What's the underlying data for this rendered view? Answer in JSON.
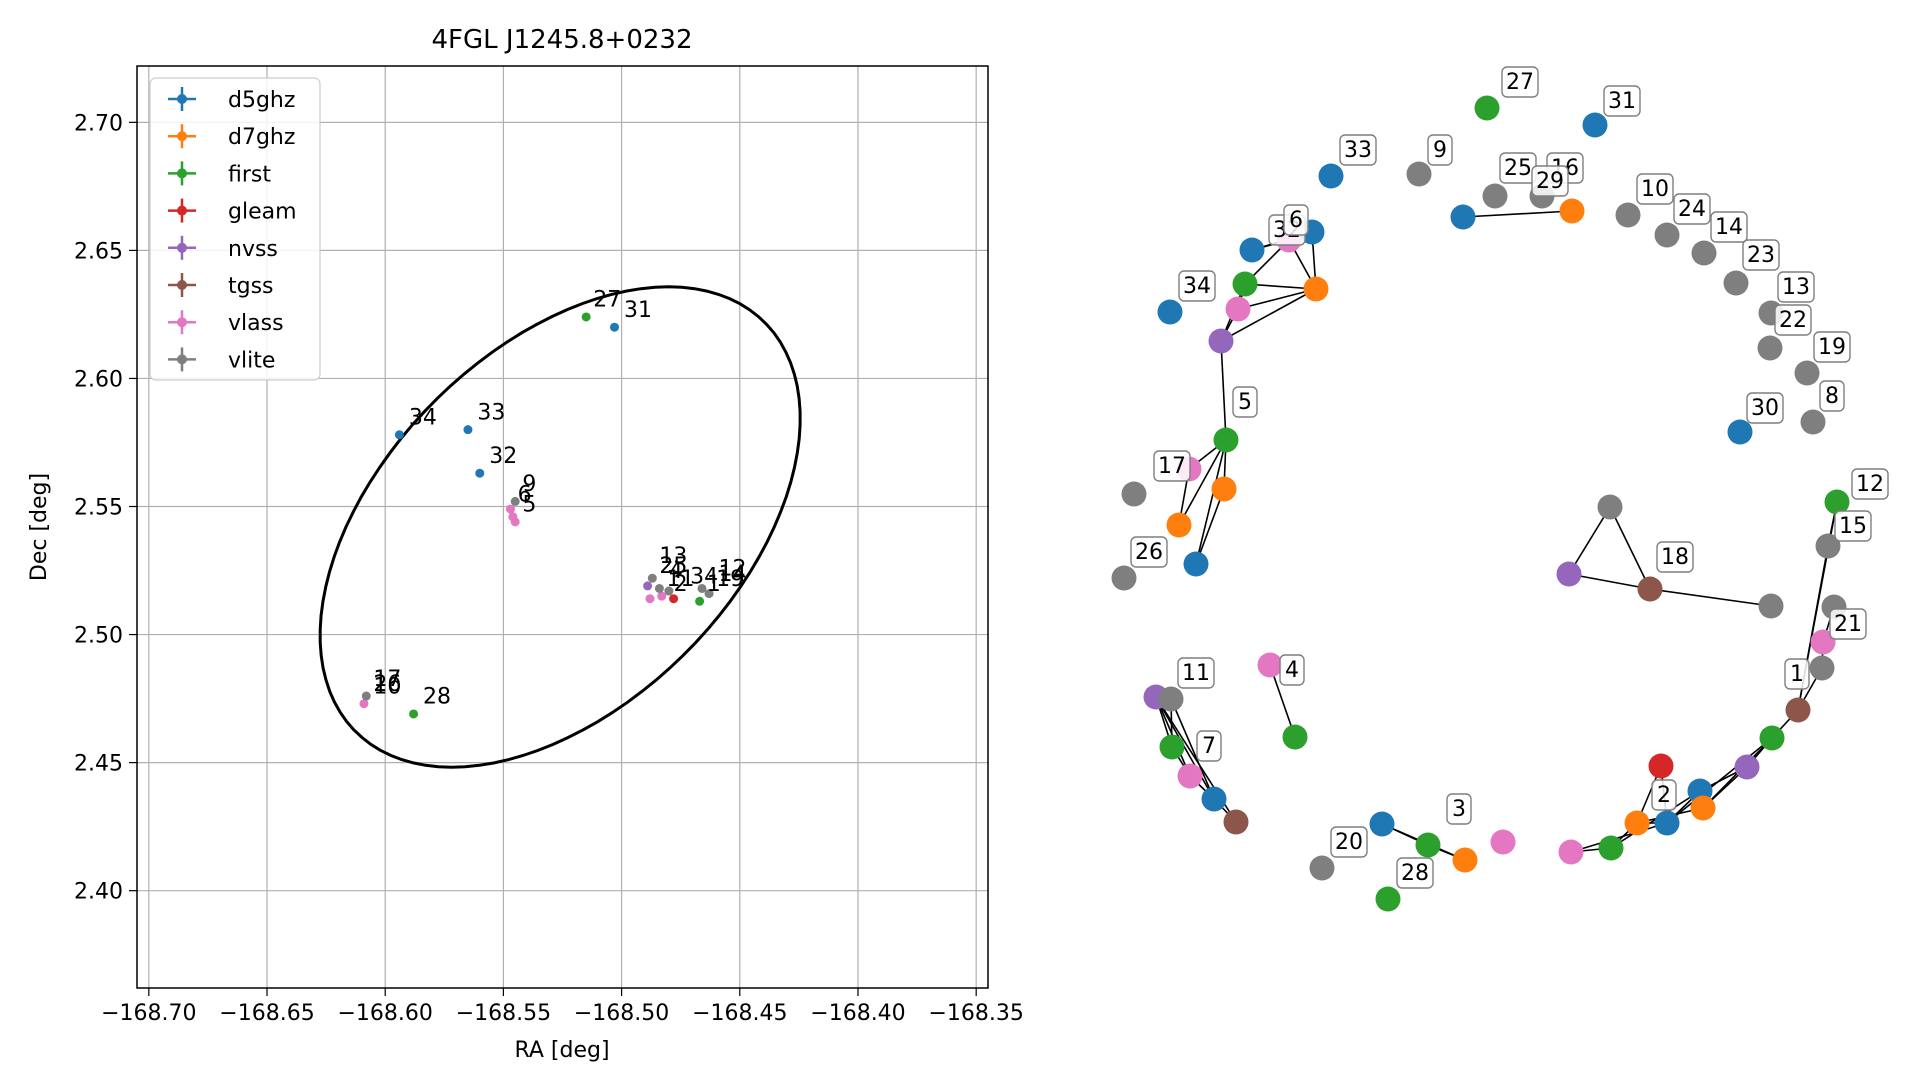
{
  "colors": {
    "d5ghz": "#1f77b4",
    "d7ghz": "#ff7f0e",
    "first": "#2ca02c",
    "gleam": "#d62728",
    "nvss": "#9467bd",
    "tgss": "#8c564b",
    "vlass": "#e377c2",
    "vlite": "#7f7f7f"
  },
  "chart_data": [
    {
      "type": "scatter",
      "title": "4FGL J1245.8+0232",
      "xlabel": "RA [deg]",
      "ylabel": "Dec [deg]",
      "xlim": [
        -168.705,
        -168.345
      ],
      "ylim": [
        2.362,
        2.722
      ],
      "x_ticks": [
        -168.7,
        -168.65,
        -168.6,
        -168.55,
        -168.5,
        -168.45,
        -168.4,
        -168.35
      ],
      "x_tick_labels": [
        "−168.70",
        "−168.65",
        "−168.60",
        "−168.55",
        "−168.50",
        "−168.45",
        "−168.40",
        "−168.35"
      ],
      "y_ticks": [
        2.4,
        2.45,
        2.5,
        2.55,
        2.6,
        2.65,
        2.7
      ],
      "y_tick_labels": [
        "2.40",
        "2.45",
        "2.50",
        "2.55",
        "2.60",
        "2.65",
        "2.70"
      ],
      "grid": true,
      "legend_position": "top-left",
      "legend": [
        "d5ghz",
        "d7ghz",
        "first",
        "gleam",
        "nvss",
        "tgss",
        "vlass",
        "vlite"
      ],
      "ellipse": {
        "center": [
          -168.526,
          2.542
        ],
        "semi_major": 0.118,
        "semi_minor": 0.072,
        "angle_deg": 40
      },
      "series": [
        {
          "name": "d5ghz",
          "points": [
            [
              -168.503,
              2.62
            ],
            [
              -168.594,
              2.578
            ],
            [
              -168.565,
              2.58
            ],
            [
              -168.56,
              2.563
            ]
          ]
        },
        {
          "name": "first",
          "points": [
            [
              -168.515,
              2.624
            ],
            [
              -168.588,
              2.469
            ],
            [
              -168.467,
              2.513
            ]
          ]
        },
        {
          "name": "gleam",
          "points": [
            [
              -168.478,
              2.514
            ]
          ]
        },
        {
          "name": "nvss",
          "points": [
            [
              -168.489,
              2.519
            ]
          ]
        },
        {
          "name": "vlass",
          "points": [
            [
              -168.547,
              2.549
            ],
            [
              -168.546,
              2.546
            ],
            [
              -168.545,
              2.544
            ],
            [
              -168.609,
              2.473
            ],
            [
              -168.488,
              2.514
            ],
            [
              -168.483,
              2.515
            ]
          ]
        },
        {
          "name": "vlite",
          "points": [
            [
              -168.545,
              2.552
            ],
            [
              -168.608,
              2.476
            ],
            [
              -168.487,
              2.522
            ],
            [
              -168.484,
              2.518
            ],
            [
              -168.48,
              2.517
            ],
            [
              -168.466,
              2.518
            ],
            [
              -168.463,
              2.516
            ]
          ]
        }
      ],
      "annotations": [
        {
          "text": "27",
          "x": -168.512,
          "y": 2.628
        },
        {
          "text": "31",
          "x": -168.499,
          "y": 2.624
        },
        {
          "text": "34",
          "x": -168.59,
          "y": 2.582
        },
        {
          "text": "33",
          "x": -168.561,
          "y": 2.584
        },
        {
          "text": "32",
          "x": -168.556,
          "y": 2.567
        },
        {
          "text": "9",
          "x": -168.542,
          "y": 2.556
        },
        {
          "text": "6",
          "x": -168.544,
          "y": 2.552
        },
        {
          "text": "5",
          "x": -168.542,
          "y": 2.548
        },
        {
          "text": "28",
          "x": -168.584,
          "y": 2.473
        },
        {
          "text": "26",
          "x": -168.605,
          "y": 2.478
        },
        {
          "text": "10",
          "x": -168.605,
          "y": 2.477
        },
        {
          "text": "17",
          "x": -168.605,
          "y": 2.48
        },
        {
          "text": "13",
          "x": -168.484,
          "y": 2.528
        },
        {
          "text": "25",
          "x": -168.484,
          "y": 2.524
        },
        {
          "text": "4",
          "x": -168.48,
          "y": 2.522
        },
        {
          "text": "2",
          "x": -168.478,
          "y": 2.517
        },
        {
          "text": "11",
          "x": -168.481,
          "y": 2.519
        },
        {
          "text": "34",
          "x": -168.471,
          "y": 2.52
        },
        {
          "text": "12",
          "x": -168.459,
          "y": 2.523
        },
        {
          "text": "19",
          "x": -168.46,
          "y": 2.519
        },
        {
          "text": "14",
          "x": -168.459,
          "y": 2.521
        },
        {
          "text": "1",
          "x": -168.464,
          "y": 2.517
        }
      ]
    },
    {
      "type": "network",
      "nodes": [
        {
          "id": "n27",
          "cat": "first",
          "label": "27"
        },
        {
          "id": "n31",
          "cat": "d5ghz",
          "label": "31"
        },
        {
          "id": "n33",
          "cat": "d5ghz",
          "label": "33"
        },
        {
          "id": "n9",
          "cat": "vlite",
          "label": "9"
        },
        {
          "id": "n25",
          "cat": "vlite",
          "label": "25"
        },
        {
          "id": "n16",
          "cat": "vlite",
          "label": "16"
        },
        {
          "id": "n29a",
          "cat": "d5ghz",
          "label": ""
        },
        {
          "id": "n29b",
          "cat": "d7ghz",
          "label": "29"
        },
        {
          "id": "n10",
          "cat": "vlite",
          "label": "10"
        },
        {
          "id": "n24",
          "cat": "vlite",
          "label": "24"
        },
        {
          "id": "n14",
          "cat": "vlite",
          "label": "14"
        },
        {
          "id": "n23",
          "cat": "vlite",
          "label": "23"
        },
        {
          "id": "n13",
          "cat": "vlite",
          "label": "13"
        },
        {
          "id": "n22",
          "cat": "vlite",
          "label": "22"
        },
        {
          "id": "n19",
          "cat": "vlite",
          "label": "19"
        },
        {
          "id": "n8",
          "cat": "vlite",
          "label": "8"
        },
        {
          "id": "n30",
          "cat": "d5ghz",
          "label": "30"
        },
        {
          "id": "c6a",
          "cat": "d5ghz",
          "label": "32"
        },
        {
          "id": "c6b",
          "cat": "d5ghz",
          "label": ""
        },
        {
          "id": "c6c",
          "cat": "vlass",
          "label": "6"
        },
        {
          "id": "c6d",
          "cat": "first",
          "label": ""
        },
        {
          "id": "c6e",
          "cat": "d7ghz",
          "label": ""
        },
        {
          "id": "c6f",
          "cat": "vlass",
          "label": ""
        },
        {
          "id": "n34",
          "cat": "d5ghz",
          "label": "34"
        },
        {
          "id": "c5a",
          "cat": "nvss",
          "label": ""
        },
        {
          "id": "c5b",
          "cat": "first",
          "label": "5"
        },
        {
          "id": "c17a",
          "cat": "vlass",
          "label": "17"
        },
        {
          "id": "c17b",
          "cat": "d7ghz",
          "label": ""
        },
        {
          "id": "c17c",
          "cat": "d7ghz",
          "label": ""
        },
        {
          "id": "c17d",
          "cat": "d5ghz",
          "label": ""
        },
        {
          "id": "n17v",
          "cat": "vlite",
          "label": ""
        },
        {
          "id": "n26",
          "cat": "vlite",
          "label": "26"
        },
        {
          "id": "c18a",
          "cat": "vlite",
          "label": ""
        },
        {
          "id": "c18b",
          "cat": "nvss",
          "label": ""
        },
        {
          "id": "c18c",
          "cat": "tgss",
          "label": "18"
        },
        {
          "id": "c18d",
          "cat": "vlite",
          "label": ""
        },
        {
          "id": "c12a",
          "cat": "first",
          "label": "12"
        },
        {
          "id": "c12b",
          "cat": "vlite",
          "label": "15"
        },
        {
          "id": "c12c",
          "cat": "vlite",
          "label": ""
        },
        {
          "id": "c12d",
          "cat": "vlass",
          "label": "21"
        },
        {
          "id": "c12e",
          "cat": "vlite",
          "label": ""
        },
        {
          "id": "c12f",
          "cat": "tgss",
          "label": "1"
        },
        {
          "id": "c12g",
          "cat": "first",
          "label": ""
        },
        {
          "id": "c12h",
          "cat": "nvss",
          "label": ""
        },
        {
          "id": "c2a",
          "cat": "gleam",
          "label": ""
        },
        {
          "id": "c2b",
          "cat": "d5ghz",
          "label": "2"
        },
        {
          "id": "c2c",
          "cat": "d7ghz",
          "label": ""
        },
        {
          "id": "c2d",
          "cat": "d5ghz",
          "label": ""
        },
        {
          "id": "c2e",
          "cat": "d7ghz",
          "label": ""
        },
        {
          "id": "c2f",
          "cat": "first",
          "label": ""
        },
        {
          "id": "c2g",
          "cat": "vlass",
          "label": ""
        },
        {
          "id": "c11a",
          "cat": "nvss",
          "label": ""
        },
        {
          "id": "c11b",
          "cat": "vlite",
          "label": "11"
        },
        {
          "id": "c11c",
          "cat": "first",
          "label": ""
        },
        {
          "id": "c11d",
          "cat": "vlass",
          "label": "7"
        },
        {
          "id": "c11e",
          "cat": "d5ghz",
          "label": ""
        },
        {
          "id": "c11f",
          "cat": "tgss",
          "label": ""
        },
        {
          "id": "c4a",
          "cat": "vlass",
          "label": ""
        },
        {
          "id": "c4b",
          "cat": "first",
          "label": "4"
        },
        {
          "id": "c3a",
          "cat": "d5ghz",
          "label": ""
        },
        {
          "id": "c3b",
          "cat": "first",
          "label": "3"
        },
        {
          "id": "c3c",
          "cat": "d7ghz",
          "label": ""
        },
        {
          "id": "n3v",
          "cat": "vlass",
          "label": ""
        },
        {
          "id": "n20",
          "cat": "vlite",
          "label": "20"
        },
        {
          "id": "n28",
          "cat": "first",
          "label": "28"
        }
      ],
      "edges": [
        [
          "n29a",
          "n29b"
        ],
        [
          "c6a",
          "c6b"
        ],
        [
          "c6a",
          "c6c"
        ],
        [
          "c6b",
          "c6e"
        ],
        [
          "c6c",
          "c6d"
        ],
        [
          "c6c",
          "c6e"
        ],
        [
          "c6d",
          "c6e"
        ],
        [
          "c6d",
          "c6f"
        ],
        [
          "c6f",
          "c6e"
        ],
        [
          "c6f",
          "c5a"
        ],
        [
          "c5a",
          "c6e"
        ],
        [
          "c5a",
          "c6d"
        ],
        [
          "c5a",
          "c5b"
        ],
        [
          "c5b",
          "c17a"
        ],
        [
          "c5b",
          "c17b"
        ],
        [
          "c5b",
          "c17c"
        ],
        [
          "c5b",
          "c17d"
        ],
        [
          "c17a",
          "c17c"
        ],
        [
          "c17b",
          "c17d"
        ],
        [
          "c18a",
          "c18b"
        ],
        [
          "c18a",
          "c18c"
        ],
        [
          "c18b",
          "c18c"
        ],
        [
          "c18c",
          "c18d"
        ],
        [
          "c12a",
          "c12b"
        ],
        [
          "c12a",
          "c12f"
        ],
        [
          "c12b",
          "c12f"
        ],
        [
          "c12c",
          "c12d"
        ],
        [
          "c12d",
          "c12e"
        ],
        [
          "c12e",
          "c12f"
        ],
        [
          "c12f",
          "c12g"
        ],
        [
          "c12g",
          "c12h"
        ],
        [
          "c12h",
          "c2d"
        ],
        [
          "c12h",
          "c2e"
        ],
        [
          "c12g",
          "c2b"
        ],
        [
          "c12g",
          "c2e"
        ],
        [
          "c2a",
          "c2b"
        ],
        [
          "c2a",
          "c2c"
        ],
        [
          "c2b",
          "c2c"
        ],
        [
          "c2b",
          "c2d"
        ],
        [
          "c2c",
          "c2e"
        ],
        [
          "c2d",
          "c2e"
        ],
        [
          "c2c",
          "c2f"
        ],
        [
          "c2f",
          "c2g"
        ],
        [
          "c2g",
          "c2b"
        ],
        [
          "c2f",
          "c2d"
        ],
        [
          "c11a",
          "c11b"
        ],
        [
          "c11a",
          "c11c"
        ],
        [
          "c11a",
          "c11d"
        ],
        [
          "c11a",
          "c11e"
        ],
        [
          "c11a",
          "c11f"
        ],
        [
          "c11b",
          "c11c"
        ],
        [
          "c11b",
          "c11e"
        ],
        [
          "c11c",
          "c11d"
        ],
        [
          "c11d",
          "c11e"
        ],
        [
          "c11e",
          "c11f"
        ],
        [
          "c4a",
          "c4b"
        ],
        [
          "c3a",
          "c3b"
        ],
        [
          "c3a",
          "c3c"
        ],
        [
          "c3b",
          "c3c"
        ]
      ]
    }
  ]
}
